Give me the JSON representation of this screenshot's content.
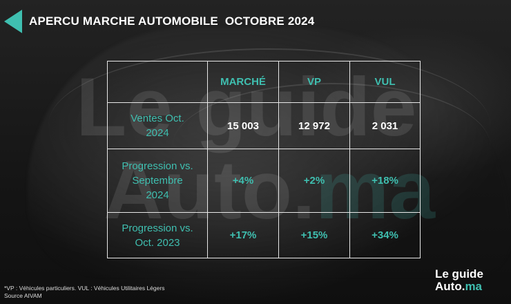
{
  "header": {
    "title": "APERCU MARCHE AUTOMOBILE  OCTOBRE 2024",
    "accent_color": "#3fbfb0"
  },
  "watermark": {
    "line1": "Le guide",
    "line2": "Auto.",
    "line2_suffix": "ma"
  },
  "table": {
    "columns": [
      "",
      "MARCHÉ",
      "VP",
      "VUL"
    ],
    "rows": [
      {
        "label": "Ventes Oct.\n2024",
        "values": [
          "15 003",
          "12 972",
          "2 031"
        ]
      },
      {
        "label": "Progression vs.\nSeptembre\n2024",
        "values": [
          "+4%",
          "+2%",
          "+18%"
        ]
      },
      {
        "label": "Progression vs.\nOct. 2023",
        "values": [
          "+17%",
          "+15%",
          "+34%"
        ]
      }
    ]
  },
  "footnote": {
    "line1": "*VP : Véhicules particuliers. VUL : Véhicules Utilitaires Légers",
    "line2": "Source AIVAM"
  },
  "logo": {
    "line1": "Le guide",
    "line2_main": "Auto.",
    "line2_suffix": "ma"
  }
}
